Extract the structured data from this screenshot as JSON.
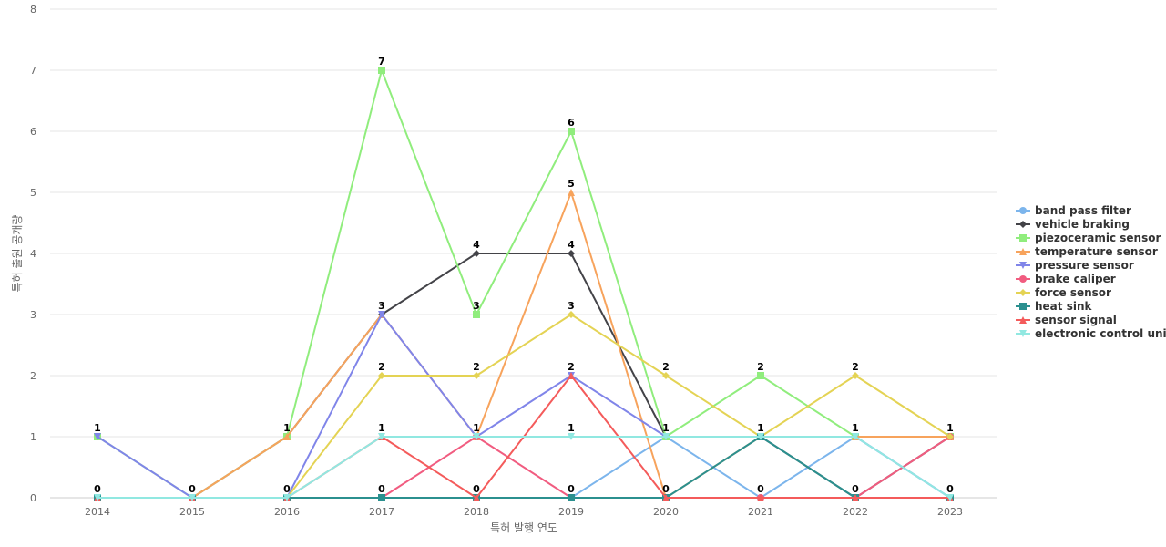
{
  "chart_data": {
    "type": "line",
    "title": "",
    "xlabel": "특허 발행 연도",
    "ylabel": "특허 출원 공개량",
    "x": [
      "2014",
      "2015",
      "2016",
      "2017",
      "2018",
      "2019",
      "2020",
      "2021",
      "2022",
      "2023"
    ],
    "yticks": [
      "0",
      "1",
      "2",
      "3",
      "4",
      "5",
      "6",
      "7",
      "8"
    ],
    "ylim": [
      0,
      8
    ],
    "grid": true,
    "legend_position": "right",
    "series": [
      {
        "name": "band pass filter",
        "color": "#7cb5ec",
        "marker": "circle",
        "values": [
          0,
          0,
          0,
          0,
          0,
          0,
          1,
          0,
          1,
          0
        ]
      },
      {
        "name": "vehicle braking",
        "color": "#434348",
        "marker": "diamond",
        "values": [
          0,
          0,
          1,
          3,
          4,
          4,
          1,
          1,
          0,
          1
        ]
      },
      {
        "name": "piezoceramic sensor",
        "color": "#90ed7d",
        "marker": "square",
        "values": [
          1,
          0,
          1,
          7,
          3,
          6,
          1,
          2,
          1,
          1
        ]
      },
      {
        "name": "temperature sensor",
        "color": "#f7a35c",
        "marker": "triangle",
        "values": [
          0,
          0,
          1,
          3,
          1,
          5,
          0,
          1,
          1,
          1
        ]
      },
      {
        "name": "pressure sensor",
        "color": "#8085e9",
        "marker": "triangle-down",
        "values": [
          1,
          0,
          0,
          3,
          1,
          2,
          1,
          1,
          1,
          0
        ]
      },
      {
        "name": "brake caliper",
        "color": "#f15c80",
        "marker": "circle",
        "values": [
          0,
          0,
          0,
          0,
          1,
          0,
          0,
          0,
          0,
          1
        ]
      },
      {
        "name": "force sensor",
        "color": "#e4d354",
        "marker": "diamond",
        "values": [
          0,
          0,
          0,
          2,
          2,
          3,
          2,
          1,
          2,
          1
        ]
      },
      {
        "name": "heat sink",
        "color": "#2b908f",
        "marker": "square",
        "values": [
          0,
          0,
          0,
          0,
          0,
          0,
          0,
          1,
          0,
          0
        ]
      },
      {
        "name": "sensor signal",
        "color": "#f45b5b",
        "marker": "triangle",
        "values": [
          0,
          0,
          0,
          1,
          0,
          2,
          0,
          0,
          0,
          0
        ]
      },
      {
        "name": "electronic control unit",
        "color": "#91e8e1",
        "marker": "triangle-down",
        "values": [
          0,
          0,
          0,
          1,
          1,
          1,
          1,
          1,
          1,
          0
        ]
      }
    ],
    "data_labels": [
      {
        "x": "2014",
        "values": [
          "1",
          "0"
        ]
      },
      {
        "x": "2015",
        "values": [
          "0"
        ]
      },
      {
        "x": "2016",
        "values": [
          "1",
          "0"
        ]
      },
      {
        "x": "2017",
        "values": [
          "7",
          "3",
          "2",
          "1",
          "0"
        ]
      },
      {
        "x": "2018",
        "values": [
          "4",
          "3",
          "2",
          "1",
          "0"
        ]
      },
      {
        "x": "2019",
        "values": [
          "6",
          "5",
          "4",
          "3",
          "2",
          "1",
          "0"
        ]
      },
      {
        "x": "2020",
        "values": [
          "2",
          "1",
          "0"
        ]
      },
      {
        "x": "2021",
        "values": [
          "2",
          "1",
          "0"
        ]
      },
      {
        "x": "2022",
        "values": [
          "2",
          "1",
          "0"
        ]
      },
      {
        "x": "2023",
        "values": [
          "1",
          "0"
        ]
      }
    ]
  }
}
